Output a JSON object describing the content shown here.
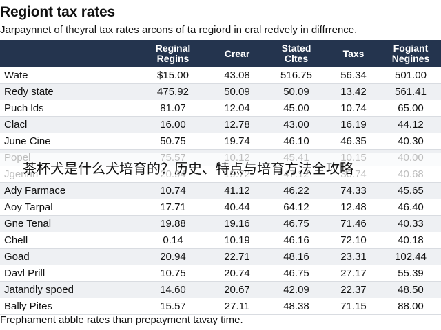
{
  "title": "Regiont tax rates",
  "subtitle": "Jarpaynnet of theyral tax rates arcons of ta regiord in cral redvely in diffrrence.",
  "table": {
    "headers": [
      "",
      "Reginal Regins",
      "Crear",
      "Stated Cltes",
      "Taxs",
      "Fogiant Negines"
    ],
    "rows": [
      [
        "Wate",
        "$15.00",
        "43.08",
        "516.75",
        "56.34",
        "501.00"
      ],
      [
        "Redy state",
        "475.92",
        "50.09",
        "50.09",
        "13.42",
        "561.41"
      ],
      [
        "Puch lds",
        "81.07",
        "12.04",
        "45.00",
        "10.74",
        "65.00"
      ],
      [
        "Clacl",
        "16.00",
        "12.78",
        "43.00",
        "16.19",
        "44.12"
      ],
      [
        "June Cine",
        "50.75",
        "19.74",
        "46.10",
        "46.35",
        "40.30"
      ],
      [
        "Popel",
        "75.57",
        "10.12",
        "45.41",
        "10.15",
        "40.00"
      ],
      [
        "Jgenrin",
        "20.94",
        "19.72",
        "47.12",
        "36.74",
        "40.68"
      ],
      [
        "Ady Farmace",
        "10.74",
        "41.12",
        "46.22",
        "74.33",
        "45.65"
      ],
      [
        "Aoy Tarpal",
        "17.71",
        "40.44",
        "64.12",
        "12.48",
        "46.40"
      ],
      [
        "Gne Tenal",
        "19.88",
        "19.16",
        "46.75",
        "71.46",
        "40.33"
      ],
      [
        "Chell",
        "0.14",
        "10.19",
        "46.16",
        "72.10",
        "40.18"
      ],
      [
        "Goad",
        "20.94",
        "22.71",
        "48.16",
        "23.31",
        "102.44"
      ],
      [
        "Davl Prill",
        "10.75",
        "20.74",
        "46.75",
        "27.17",
        "55.39"
      ],
      [
        "Jatandly spoed",
        "14.60",
        "20.67",
        "42.09",
        "22.37",
        "48.50"
      ],
      [
        "Bally Pites",
        "15.57",
        "27.11",
        "48.38",
        "71.15",
        "88.00"
      ]
    ]
  },
  "footnote": "Frephament abble rates than prepayment tavay time.",
  "overlay_caption": "茶杯犬是什么犬培育的？历史、特点与培育方法全攻略",
  "colors": {
    "header_bg": "#24344e",
    "header_text": "#ffffff",
    "stripe_bg": "#eef0f3"
  }
}
